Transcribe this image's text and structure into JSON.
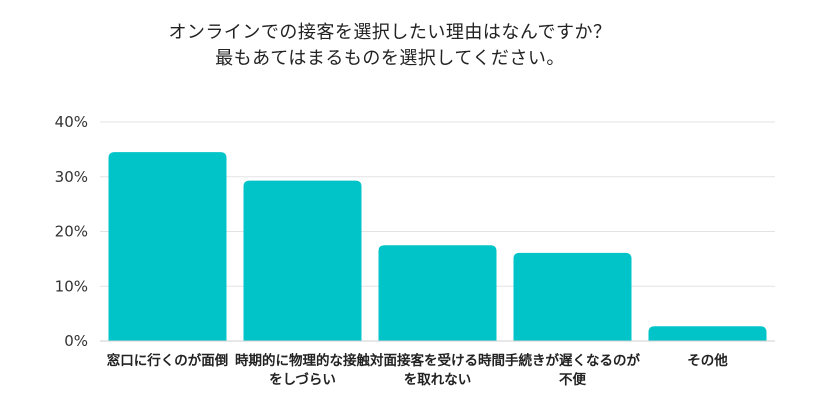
{
  "chart_data": {
    "type": "bar",
    "title_lines": [
      "オンラインでの接客を選択したい理由はなんですか？",
      "最もあてはまるものを選択してください。"
    ],
    "categories": [
      "窓口に行くのが面倒",
      "時期的に物理的な接触をしづらい",
      "対面接客を受ける時間を取れない",
      "手続きが遅くなるのが不便",
      "その他"
    ],
    "values": [
      34.5,
      29.3,
      17.5,
      16.1,
      2.7
    ],
    "yticks": [
      "0%",
      "10%",
      "20%",
      "30%",
      "40%"
    ],
    "ylim": [
      0,
      40
    ],
    "grid": true,
    "bar_color": "#00c4c8",
    "grid_color": "#e3e3e3"
  }
}
